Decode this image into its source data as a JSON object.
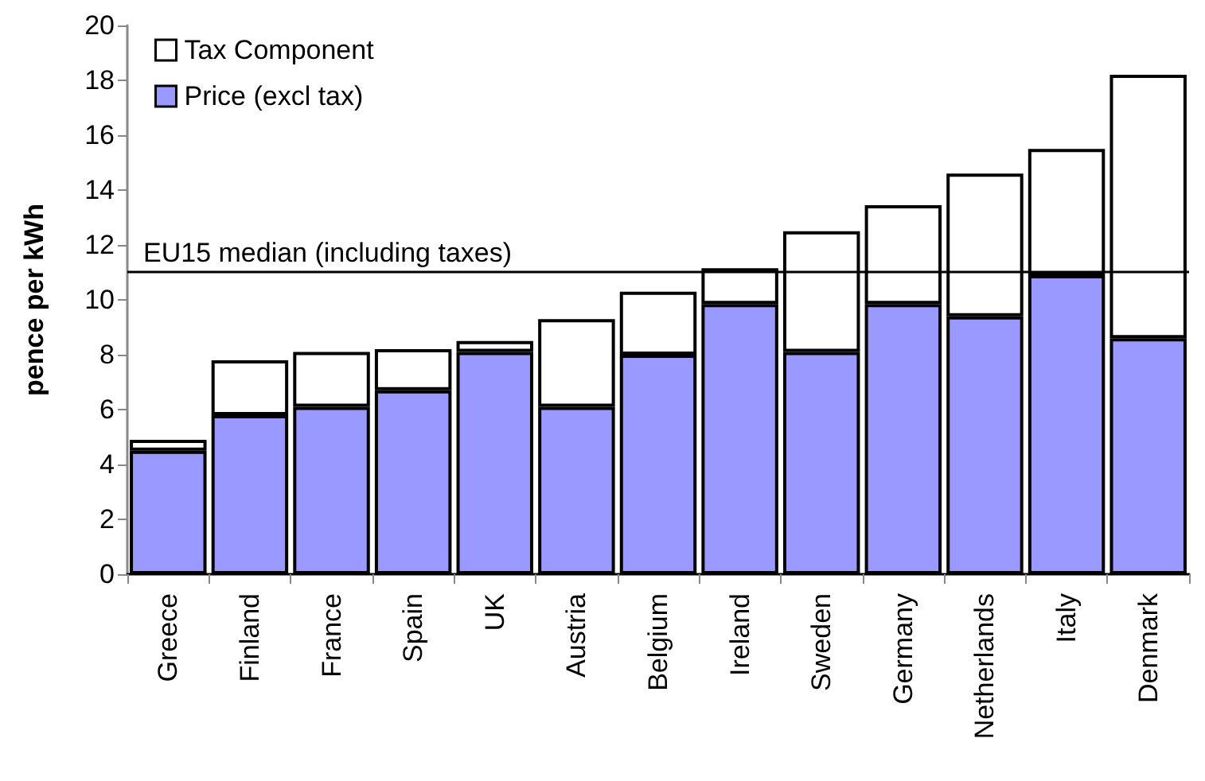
{
  "chart_data": {
    "type": "bar",
    "ylabel": "pence per kWh",
    "stacked": true,
    "categories": [
      "Greece",
      "Finland",
      "France",
      "Spain",
      "UK",
      "Austria",
      "Belgium",
      "Ireland",
      "Sweden",
      "Germany",
      "Netherlands",
      "Italy",
      "Denmark"
    ],
    "series": [
      {
        "name": "Price (excl tax)",
        "color": "#9999ff",
        "values": [
          4.5,
          5.8,
          6.1,
          6.7,
          8.1,
          6.1,
          8.0,
          9.85,
          8.1,
          9.85,
          9.4,
          10.9,
          8.6
        ]
      },
      {
        "name": "Tax Component",
        "color": "#ffffff",
        "values": [
          0.4,
          2.0,
          2.0,
          1.5,
          0.4,
          3.2,
          2.3,
          1.3,
          4.4,
          3.6,
          5.2,
          4.6,
          9.6
        ]
      }
    ],
    "ylim": [
      0,
      20
    ],
    "yticks": [
      0,
      2,
      4,
      6,
      8,
      10,
      12,
      14,
      16,
      18,
      20
    ],
    "grid": false,
    "legend": "top left",
    "ref_lines": [
      {
        "axis": "y",
        "value": 11,
        "label": "EU15 median (including taxes)",
        "color": "#000000"
      }
    ]
  }
}
